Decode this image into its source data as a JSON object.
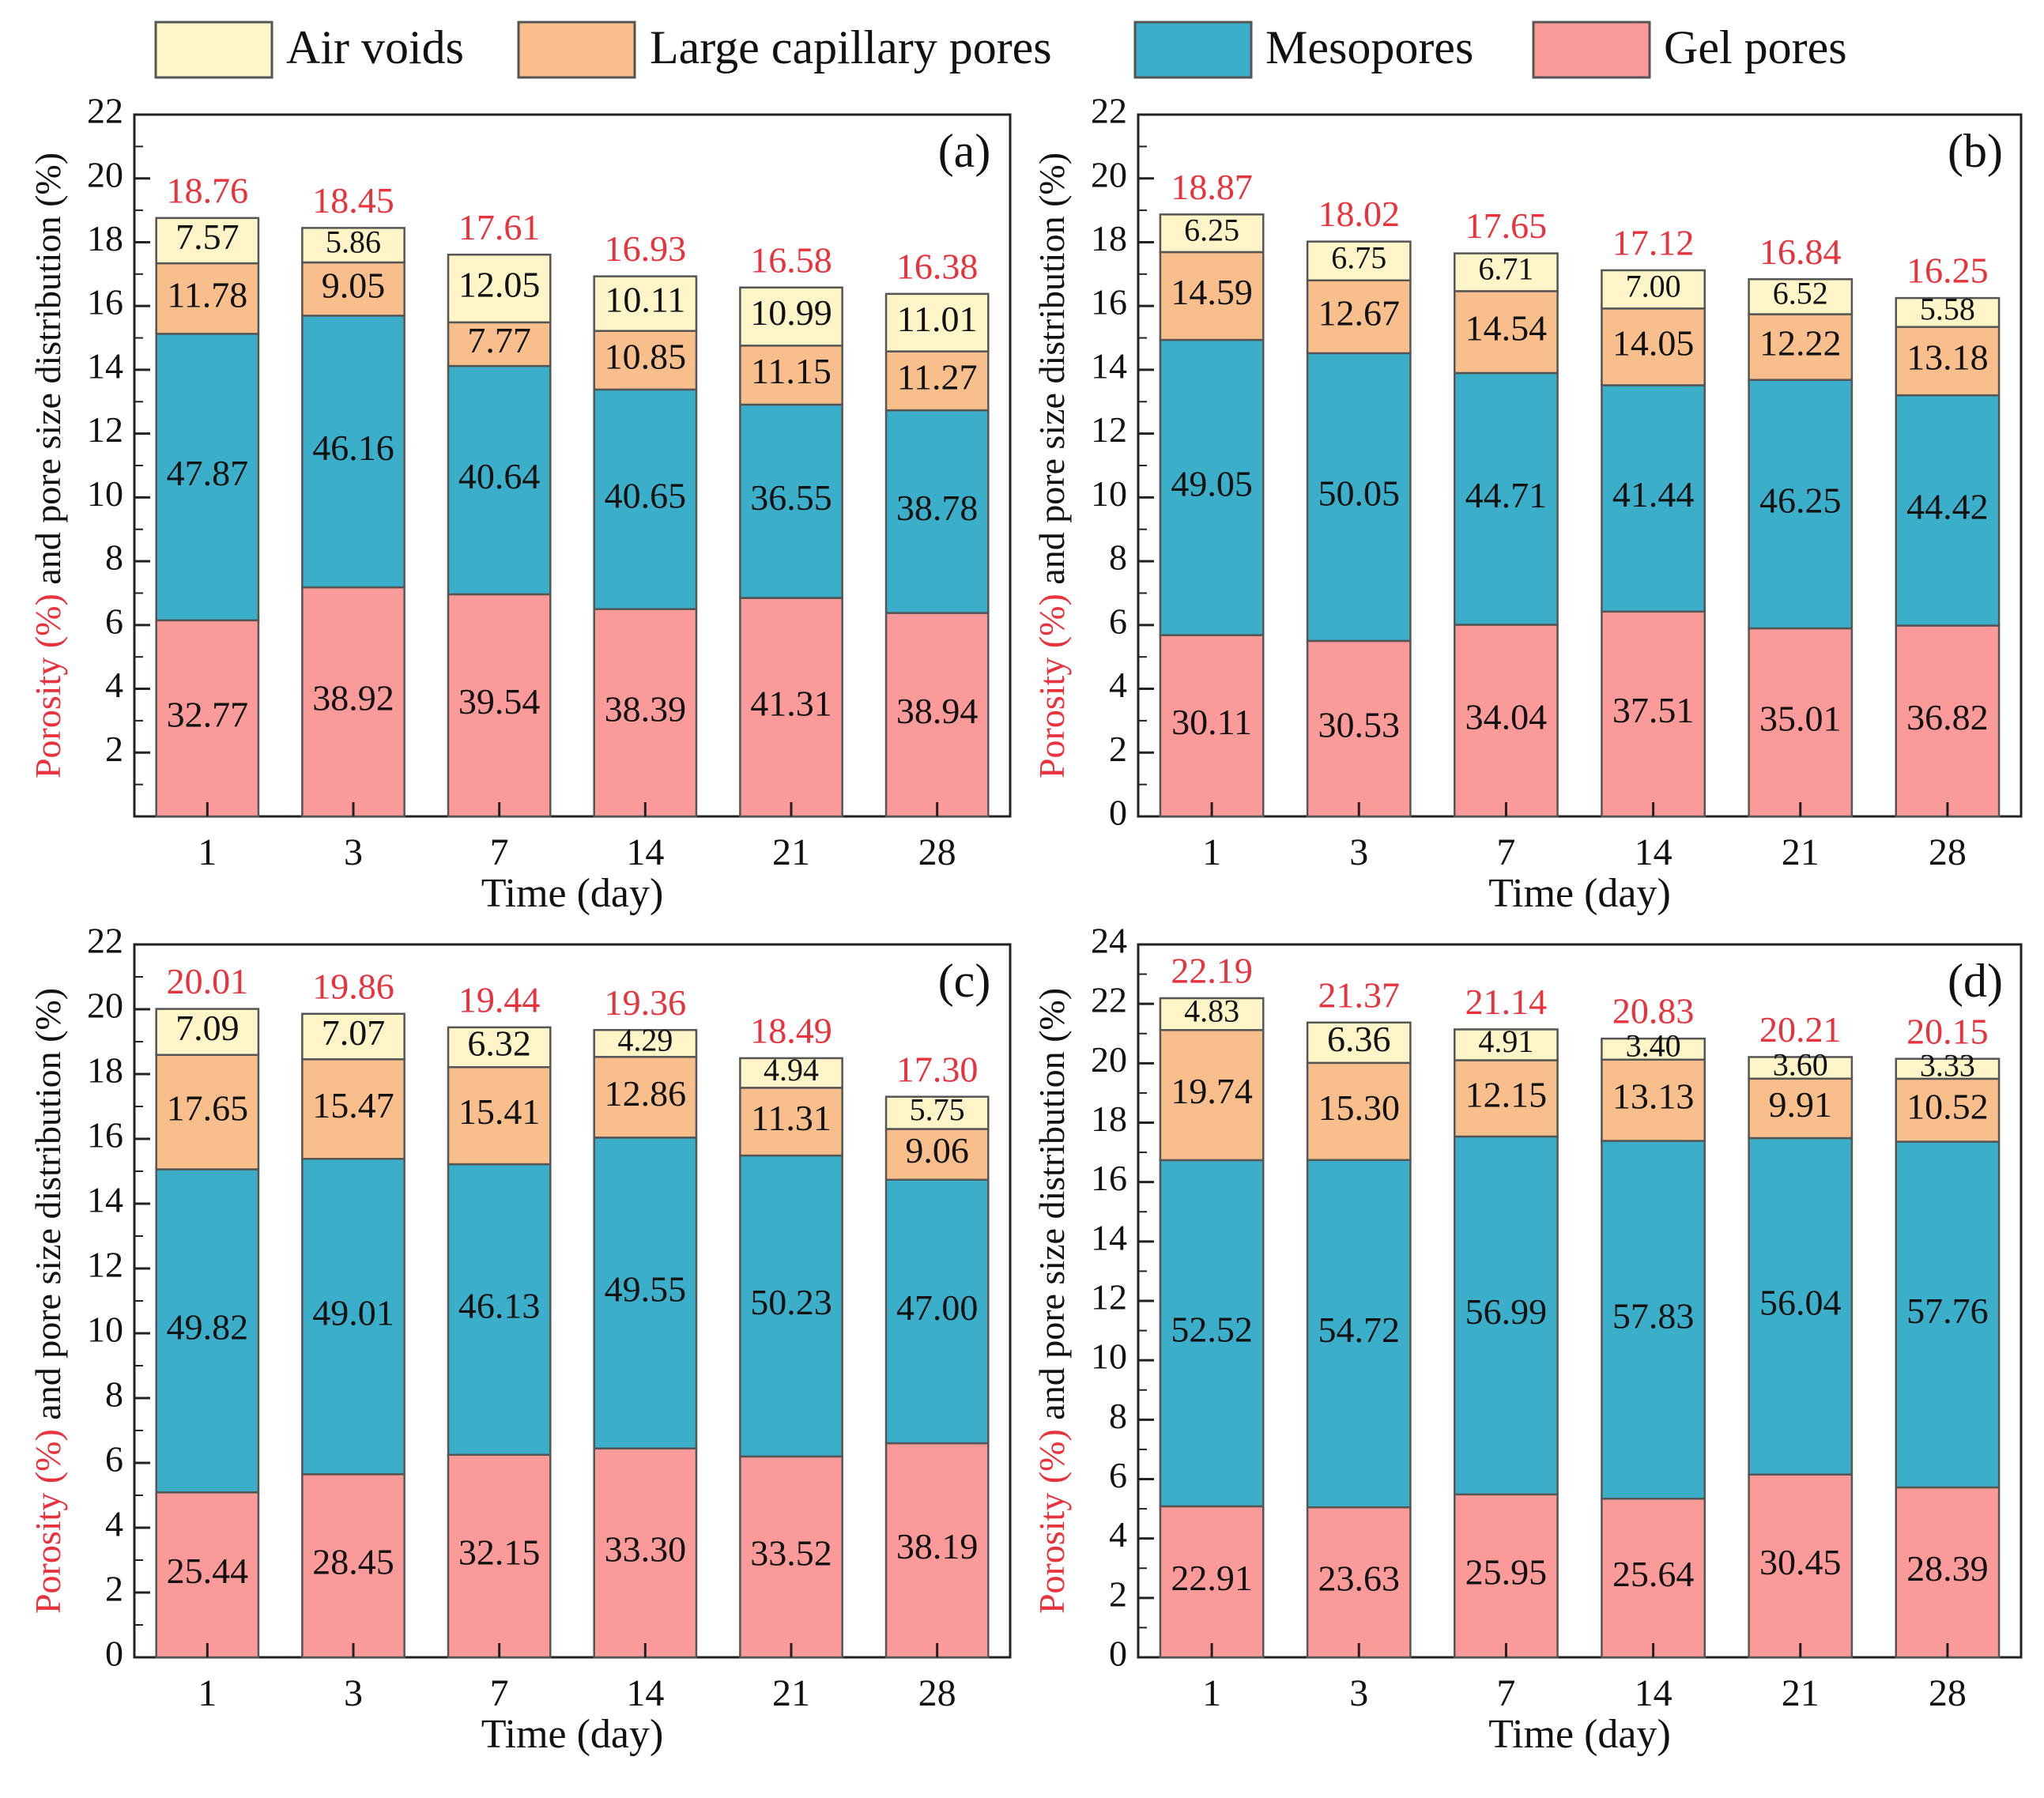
{
  "legend": [
    {
      "label": "Air voids",
      "color": "#FFF5C8"
    },
    {
      "label": "Large capillary pores",
      "color": "#F8BF8D"
    },
    {
      "label": "Mesopores",
      "color": "#3BAFC9"
    },
    {
      "label": "Gel pores",
      "color": "#FA9A99"
    }
  ],
  "colors": {
    "total_label": "#E8323C",
    "ylabel_red": "#E8323C",
    "text": "#111111"
  },
  "chart_data": [
    {
      "type": "bar",
      "stacked": true,
      "panel": "(a)",
      "categories": [
        "1",
        "3",
        "7",
        "14",
        "21",
        "28"
      ],
      "xlabel": "Time (day)",
      "ylabel_prefix": "Porosity (%)",
      "ylabel_suffix": " and pore size distribution (%)",
      "ylim": [
        0,
        22
      ],
      "yticks": [
        2,
        4,
        6,
        8,
        10,
        12,
        14,
        16,
        18,
        20,
        22
      ],
      "totals": [
        "18.76",
        "18.45",
        "17.61",
        "16.93",
        "16.58",
        "16.38"
      ],
      "series": [
        {
          "name": "Gel pores",
          "labels": [
            "32.77",
            "38.92",
            "39.54",
            "38.39",
            "41.31",
            "38.94"
          ]
        },
        {
          "name": "Mesopores",
          "labels": [
            "47.87",
            "46.16",
            "40.64",
            "40.65",
            "36.55",
            "38.78"
          ]
        },
        {
          "name": "Large capillary pores",
          "labels": [
            "11.78",
            "9.05",
            "7.77",
            "10.85",
            "11.15",
            "11.27"
          ]
        },
        {
          "name": "Air voids",
          "labels": [
            "7.57",
            "5.86",
            "12.05",
            "10.11",
            "10.99",
            "11.01"
          ]
        }
      ]
    },
    {
      "type": "bar",
      "stacked": true,
      "panel": "(b)",
      "categories": [
        "1",
        "3",
        "7",
        "14",
        "21",
        "28"
      ],
      "xlabel": "Time (day)",
      "ylabel_prefix": "Porosity (%)",
      "ylabel_suffix": " and pore size distribution (%)",
      "ylim": [
        0,
        22
      ],
      "yticks": [
        0,
        2,
        4,
        6,
        8,
        10,
        12,
        14,
        16,
        18,
        20,
        22
      ],
      "totals": [
        "18.87",
        "18.02",
        "17.65",
        "17.12",
        "16.84",
        "16.25"
      ],
      "series": [
        {
          "name": "Gel pores",
          "labels": [
            "30.11",
            "30.53",
            "34.04",
            "37.51",
            "35.01",
            "36.82"
          ]
        },
        {
          "name": "Mesopores",
          "labels": [
            "49.05",
            "50.05",
            "44.71",
            "41.44",
            "46.25",
            "44.42"
          ]
        },
        {
          "name": "Large capillary pores",
          "labels": [
            "14.59",
            "12.67",
            "14.54",
            "14.05",
            "12.22",
            "13.18"
          ]
        },
        {
          "name": "Air voids",
          "labels": [
            "6.25",
            "6.75",
            "6.71",
            "7.00",
            "6.52",
            "5.58"
          ]
        }
      ]
    },
    {
      "type": "bar",
      "stacked": true,
      "panel": "(c)",
      "categories": [
        "1",
        "3",
        "7",
        "14",
        "21",
        "28"
      ],
      "xlabel": "Time (day)",
      "ylabel_prefix": "Porosity (%)",
      "ylabel_suffix": " and pore size distribution (%)",
      "ylim": [
        0,
        22
      ],
      "yticks": [
        0,
        2,
        4,
        6,
        8,
        10,
        12,
        14,
        16,
        18,
        20,
        22
      ],
      "totals": [
        "20.01",
        "19.86",
        "19.44",
        "19.36",
        "18.49",
        "17.30"
      ],
      "series": [
        {
          "name": "Gel pores",
          "labels": [
            "25.44",
            "28.45",
            "32.15",
            "33.30",
            "33.52",
            "38.19"
          ]
        },
        {
          "name": "Mesopores",
          "labels": [
            "49.82",
            "49.01",
            "46.13",
            "49.55",
            "50.23",
            "47.00"
          ]
        },
        {
          "name": "Large capillary pores",
          "labels": [
            "17.65",
            "15.47",
            "15.41",
            "12.86",
            "11.31",
            "9.06"
          ]
        },
        {
          "name": "Air voids",
          "labels": [
            "7.09",
            "7.07",
            "6.32",
            "4.29",
            "4.94",
            "5.75"
          ]
        }
      ]
    },
    {
      "type": "bar",
      "stacked": true,
      "panel": "(d)",
      "categories": [
        "1",
        "3",
        "7",
        "14",
        "21",
        "28"
      ],
      "xlabel": "Time (day)",
      "ylabel_prefix": "Porosity (%)",
      "ylabel_suffix": " and pore size distribution (%)",
      "ylim": [
        0,
        24
      ],
      "yticks": [
        0,
        2,
        4,
        6,
        8,
        10,
        12,
        14,
        16,
        18,
        20,
        22,
        24
      ],
      "totals": [
        "22.19",
        "21.37",
        "21.14",
        "20.83",
        "20.21",
        "20.15"
      ],
      "series": [
        {
          "name": "Gel pores",
          "labels": [
            "22.91",
            "23.63",
            "25.95",
            "25.64",
            "30.45",
            "28.39"
          ]
        },
        {
          "name": "Mesopores",
          "labels": [
            "52.52",
            "54.72",
            "56.99",
            "57.83",
            "56.04",
            "57.76"
          ]
        },
        {
          "name": "Large capillary pores",
          "labels": [
            "19.74",
            "15.30",
            "12.15",
            "13.13",
            "9.91",
            "10.52"
          ]
        },
        {
          "name": "Air voids",
          "labels": [
            "4.83",
            "6.36",
            "4.91",
            "3.40",
            "3.60",
            "3.33"
          ]
        }
      ]
    }
  ]
}
